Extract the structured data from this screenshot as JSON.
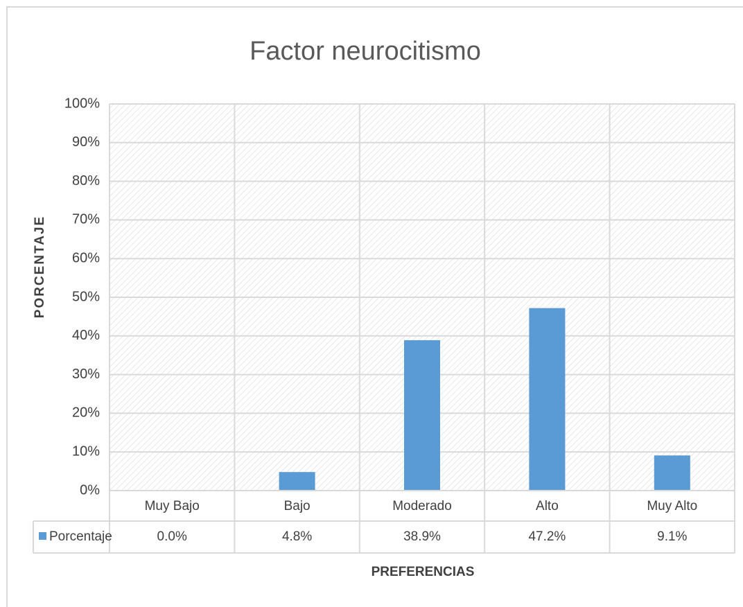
{
  "chart_data": {
    "type": "bar",
    "title": "Factor neurocitismo",
    "categories": [
      "Muy Bajo",
      "Bajo",
      "Moderado",
      "Alto",
      "Muy Alto"
    ],
    "series": [
      {
        "name": "Porcentaje",
        "color": "#5b9bd5",
        "values": [
          0,
          4.8,
          38.9,
          47.2,
          9.1
        ],
        "value_labels": [
          "0.0%",
          "4.8%",
          "38.9%",
          "47.2%",
          "9.1%"
        ]
      }
    ],
    "ylabel": "PORCENTAJE",
    "xlabel": "PREFERENCIAS",
    "ylim": [
      0,
      100
    ],
    "yticks": [
      {
        "value": 0,
        "label": "0%"
      },
      {
        "value": 10,
        "label": "10%"
      },
      {
        "value": 20,
        "label": "20%"
      },
      {
        "value": 30,
        "label": "30%"
      },
      {
        "value": 40,
        "label": "40%"
      },
      {
        "value": 50,
        "label": "50%"
      },
      {
        "value": 60,
        "label": "60%"
      },
      {
        "value": 70,
        "label": "70%"
      },
      {
        "value": 80,
        "label": "80%"
      },
      {
        "value": 90,
        "label": "90%"
      },
      {
        "value": 100,
        "label": "100%"
      }
    ],
    "grid": true,
    "data_table": true
  }
}
